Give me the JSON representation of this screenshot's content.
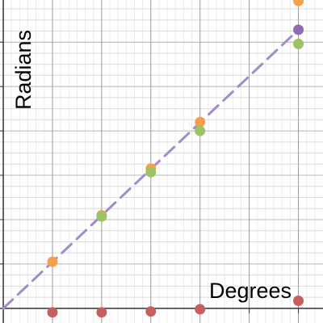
{
  "chart_data": {
    "type": "scatter",
    "xlabel": "Degrees",
    "ylabel": "Radians",
    "xlim": [
      -4,
      390
    ],
    "ylim": [
      -0.33,
      6.95
    ],
    "x_gridlines": [
      0,
      60,
      120,
      180,
      240,
      300,
      360
    ],
    "y_gridlines": [
      0,
      0.25,
      0.5,
      0.75,
      1,
      1.25,
      1.5,
      1.75,
      2,
      2.25,
      2.5,
      2.75,
      3,
      3.25,
      3.5,
      3.75,
      4,
      4.25,
      4.5,
      4.75,
      5,
      5.25,
      5.5,
      5.75,
      6,
      6.25,
      6.5,
      6.75
    ],
    "grid": true,
    "series": [
      {
        "color": "#f6a04d",
        "points": [
          [
            60,
            1.05
          ],
          [
            120,
            2.1
          ],
          [
            180,
            3.15
          ],
          [
            240,
            4.2
          ],
          [
            360,
            6.93
          ]
        ]
      },
      {
        "color": "#9ac465",
        "points": [
          [
            120,
            2.07
          ],
          [
            180,
            3.07
          ],
          [
            240,
            4.0
          ],
          [
            360,
            5.96
          ]
        ]
      },
      {
        "color": "#8f6bb5",
        "points": [
          [
            360,
            6.28
          ]
        ]
      },
      {
        "color": "#c85f5f",
        "points": [
          [
            60,
            -0.09
          ],
          [
            120,
            -0.09
          ],
          [
            180,
            -0.07
          ],
          [
            240,
            -0.02
          ],
          [
            360,
            0.17
          ]
        ]
      }
    ],
    "line": {
      "style": "dashed",
      "color": "#a08cc8",
      "from": [
        0,
        0
      ],
      "to": [
        360,
        6.28
      ]
    }
  }
}
